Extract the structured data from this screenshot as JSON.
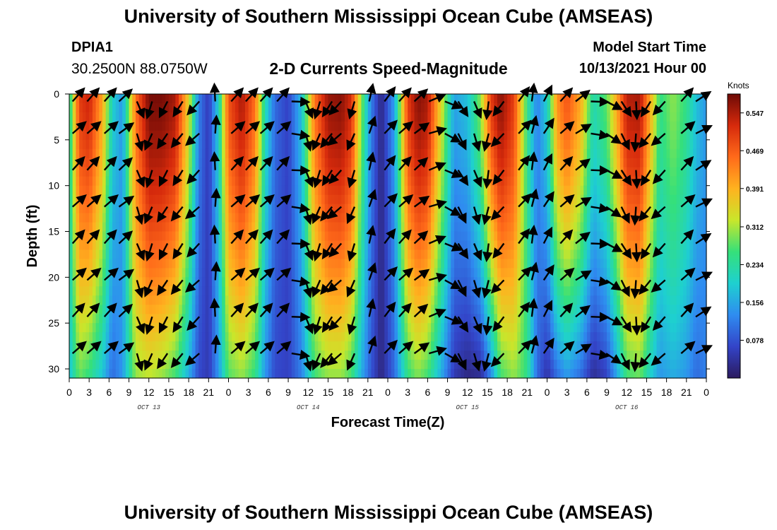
{
  "header": {
    "title": "University of Southern Mississippi Ocean Cube (AMSEAS)",
    "station": "DPIA1",
    "coords": "30.2500N  88.0750W",
    "subtitle": "2-D Currents Speed-Magnitude",
    "model_label": "Model Start Time",
    "model_time": "10/13/2021 Hour 00"
  },
  "footer": {
    "title": "University of Southern Mississippi Ocean Cube (AMSEAS)"
  },
  "colors": {
    "ramp": [
      "#2b1a5e",
      "#3344c8",
      "#2f8cf0",
      "#1ed0d0",
      "#35e07a",
      "#c9e62b",
      "#ffb21f",
      "#ff6a1a",
      "#d62a0c",
      "#6e0a06"
    ]
  },
  "chart_data": {
    "type": "heatmap",
    "title": "2-D Currents Speed-Magnitude",
    "xlabel": "Forecast Time(Z)",
    "ylabel": "Depth (ft)",
    "x_hours": [
      0,
      96
    ],
    "xticks": [
      "0",
      "3",
      "6",
      "9",
      "12",
      "15",
      "18",
      "21",
      "0",
      "3",
      "6",
      "9",
      "12",
      "15",
      "18",
      "21",
      "0",
      "3",
      "6",
      "9",
      "12",
      "15",
      "18",
      "21",
      "0",
      "3",
      "6",
      "9",
      "12",
      "15",
      "18",
      "21",
      "0"
    ],
    "day_labels": [
      {
        "label": "OCT 13",
        "hour": 12
      },
      {
        "label": "OCT 14",
        "hour": 36
      },
      {
        "label": "OCT 15",
        "hour": 60
      },
      {
        "label": "OCT 16",
        "hour": 84
      }
    ],
    "ylim": [
      0,
      31
    ],
    "yticks": [
      "0",
      "5",
      "10",
      "15",
      "20",
      "25",
      "30"
    ],
    "colorbar": {
      "unit": "Knots",
      "range": [
        0.0,
        0.586
      ],
      "ticks": [
        "0.547",
        "0.469",
        "0.391",
        "0.312",
        "0.234",
        "0.156",
        "0.078"
      ]
    },
    "speed_profile_hours": [
      0,
      1.5,
      3,
      5,
      6.5,
      8,
      10,
      12,
      14,
      16,
      18,
      19.5,
      21,
      22.5,
      24,
      26,
      28,
      29.5,
      31,
      33,
      35,
      37,
      39,
      41,
      42.5,
      44,
      45.5,
      47,
      49,
      51,
      52.5,
      54,
      56,
      58,
      60,
      62,
      63.5,
      65,
      67,
      69,
      70.5,
      72,
      73.5,
      75,
      77,
      79,
      81,
      82.5,
      84,
      86,
      87.5,
      89,
      91,
      93,
      94.5,
      96
    ],
    "speed_surface_knots": [
      0.22,
      0.5,
      0.53,
      0.4,
      0.2,
      0.14,
      0.45,
      0.58,
      0.58,
      0.55,
      0.35,
      0.12,
      0.05,
      0.2,
      0.48,
      0.55,
      0.45,
      0.22,
      0.1,
      0.06,
      0.18,
      0.45,
      0.56,
      0.57,
      0.52,
      0.3,
      0.12,
      0.02,
      0.15,
      0.5,
      0.57,
      0.55,
      0.35,
      0.15,
      0.18,
      0.3,
      0.5,
      0.57,
      0.5,
      0.25,
      0.12,
      0.2,
      0.42,
      0.48,
      0.4,
      0.22,
      0.28,
      0.4,
      0.54,
      0.55,
      0.4,
      0.25,
      0.3,
      0.25,
      0.18,
      0.14
    ],
    "speed_bottom_knots": [
      0.18,
      0.28,
      0.25,
      0.18,
      0.1,
      0.14,
      0.3,
      0.32,
      0.3,
      0.26,
      0.16,
      0.07,
      0.05,
      0.14,
      0.27,
      0.3,
      0.25,
      0.14,
      0.07,
      0.06,
      0.12,
      0.26,
      0.3,
      0.3,
      0.26,
      0.16,
      0.08,
      0.02,
      0.1,
      0.25,
      0.29,
      0.26,
      0.16,
      0.05,
      0.02,
      0.03,
      0.12,
      0.26,
      0.3,
      0.25,
      0.1,
      0.04,
      0.1,
      0.14,
      0.1,
      0.03,
      0.06,
      0.15,
      0.26,
      0.28,
      0.2,
      0.14,
      0.16,
      0.14,
      0.1,
      0.12
    ],
    "vector_depths_ft": [
      0.5,
      4,
      8,
      12,
      16,
      20,
      24,
      28
    ],
    "vector_hours": [
      0.5,
      2.7,
      5.3,
      7.5,
      10.2,
      12.5,
      14.8,
      17.1,
      19.6,
      22,
      24.4,
      26.6,
      28.8,
      31.3,
      33.5,
      35.6,
      37.8,
      39.6,
      41,
      43,
      45.2,
      47.5,
      49.7,
      52,
      54.2,
      56.6,
      58.6,
      61,
      63.2,
      65.5,
      67.7,
      69.7,
      71.5,
      74,
      76.3,
      78.6,
      80.9,
      83.2,
      85.4,
      87.6,
      89.8,
      92.2,
      94.4
    ],
    "vector_dir_deg": [
      45,
      45,
      45,
      50,
      160,
      200,
      210,
      215,
      225,
      0,
      45,
      45,
      45,
      45,
      95,
      160,
      200,
      215,
      225,
      200,
      15,
      40,
      45,
      50,
      70,
      115,
      150,
      160,
      190,
      220,
      40,
      10,
      30,
      45,
      55,
      95,
      120,
      150,
      180,
      215,
      225,
      45,
      60
    ]
  }
}
